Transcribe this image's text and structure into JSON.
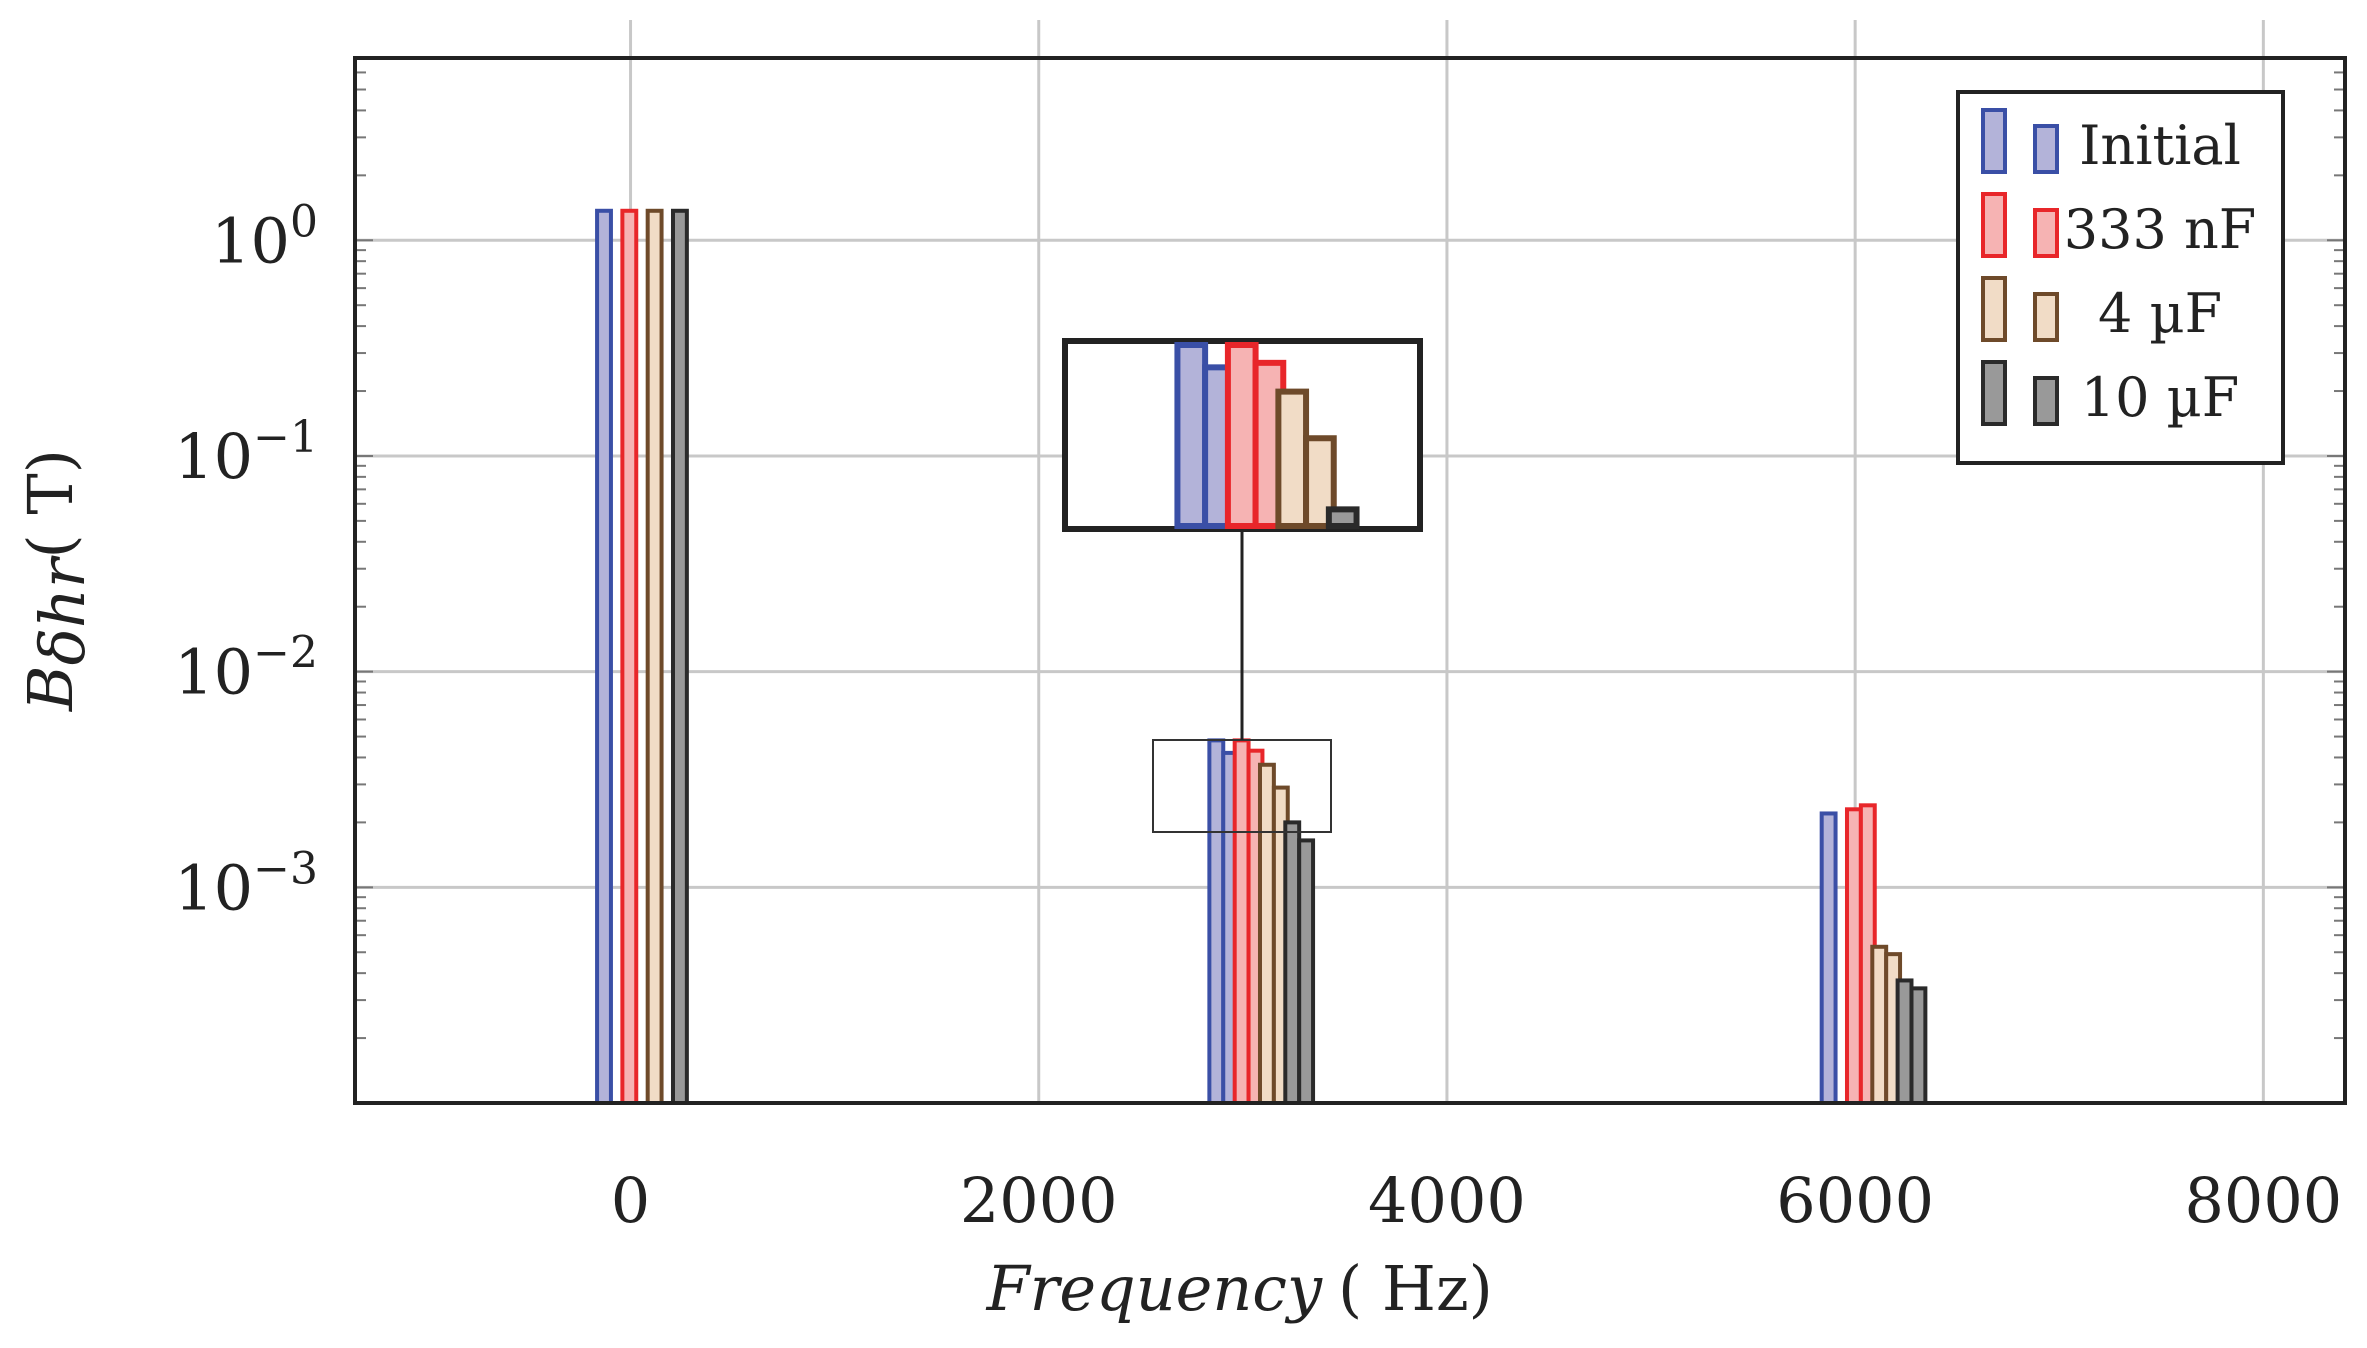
{
  "chart_data": {
    "type": "bar",
    "title": "",
    "xlabel": "Frequency",
    "xlabel_unit": "( Hz)",
    "ylabel": "B",
    "ylabel_sub": "δhr",
    "ylabel_unit": "( T)",
    "yscale": "log",
    "xlim": [
      -1350,
      8400
    ],
    "ylim": [
      0.0001,
      7
    ],
    "x_ticks": [
      {
        "value": 0,
        "label": "0"
      },
      {
        "value": 2000,
        "label": "2000"
      },
      {
        "value": 4000,
        "label": "4000"
      },
      {
        "value": 6000,
        "label": "6000"
      },
      {
        "value": 8000,
        "label": "8000"
      }
    ],
    "y_ticks": [
      {
        "value": 1,
        "base": "10",
        "exp": "0"
      },
      {
        "value": 0.1,
        "base": "10",
        "exp": "−1"
      },
      {
        "value": 0.01,
        "base": "10",
        "exp": "−2"
      },
      {
        "value": 0.001,
        "base": "10",
        "exp": "−3"
      }
    ],
    "categories": [
      0,
      3000,
      6000
    ],
    "series": [
      {
        "name": "Initial",
        "fill": "#b3b3d9",
        "stroke": "#3a4fa6",
        "values": [
          1.37,
          0.0048,
          0.0022
        ],
        "second_values": [
          null,
          0.0042,
          null
        ]
      },
      {
        "name": "333 nF",
        "fill": "#f6b3b3",
        "stroke": "#e8262a",
        "values": [
          1.37,
          0.0048,
          0.0023
        ],
        "second_values": [
          null,
          0.0043,
          0.0024
        ]
      },
      {
        "name": "4 µF",
        "fill": "#f1dcc6",
        "stroke": "#6e4a2a",
        "values": [
          1.37,
          0.0037,
          0.00053
        ],
        "second_values": [
          null,
          0.0029,
          0.00049
        ]
      },
      {
        "name": "10 µF",
        "fill": "#999999",
        "stroke": "#2a2a2a",
        "values": [
          1.37,
          0.002,
          0.00037
        ],
        "second_values": [
          null,
          0.00165,
          0.00034
        ]
      }
    ],
    "legend_position": "top-right",
    "inset": "zoom of the bar group at 3000 Hz"
  }
}
